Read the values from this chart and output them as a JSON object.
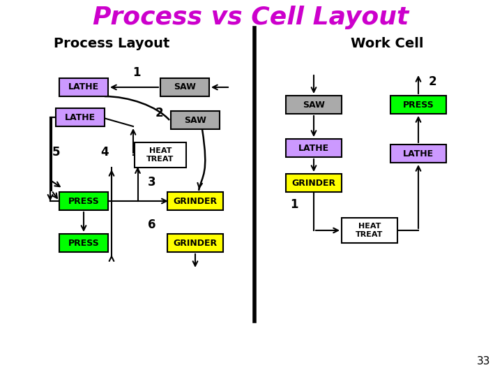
{
  "title": "Process vs Cell Layout",
  "title_color": "#CC00CC",
  "title_fontsize": 26,
  "subtitle_left": "Process Layout",
  "subtitle_right": "Work Cell",
  "subtitle_fontsize": 14,
  "bg_color": "#FFFFFF",
  "box_colors": {
    "LATHE": "#CC99FF",
    "SAW": "#AAAAAA",
    "HEAT TREAT": "#FFFFFF",
    "PRESS": "#00FF00",
    "GRINDER": "#FFFF00"
  },
  "page_number": "33"
}
